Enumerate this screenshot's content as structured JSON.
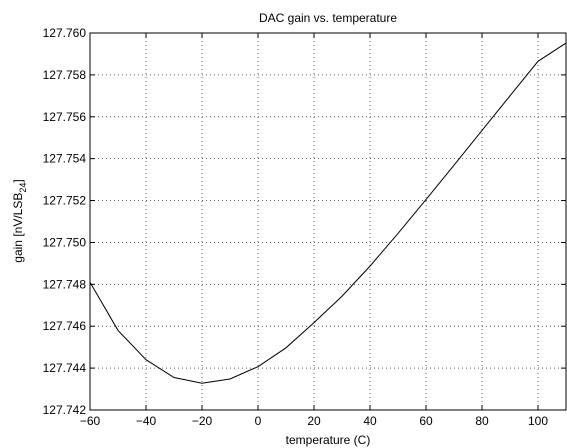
{
  "chart_data": {
    "type": "line",
    "title": "DAC gain vs. temperature",
    "xlabel": "temperature (C)",
    "ylabel": {
      "main": "gain [nV/LSB",
      "sub": "24",
      "end": "]"
    },
    "xlim": [
      -60,
      110
    ],
    "ylim": [
      127.742,
      127.76
    ],
    "xticks": [
      "−60",
      "−40",
      "−20",
      "0",
      "20",
      "40",
      "60",
      "80",
      "100"
    ],
    "xtick_values": [
      -60,
      -40,
      -20,
      0,
      20,
      40,
      60,
      80,
      100
    ],
    "yticks": [
      "127.742",
      "127.744",
      "127.746",
      "127.748",
      "127.750",
      "127.752",
      "127.754",
      "127.756",
      "127.758",
      "127.760"
    ],
    "ytick_values": [
      127.742,
      127.744,
      127.746,
      127.748,
      127.75,
      127.752,
      127.754,
      127.756,
      127.758,
      127.76
    ],
    "grid": true,
    "series": [
      {
        "x": [
          -60,
          -50,
          -40,
          -30,
          -20,
          -10,
          0,
          10,
          20,
          30,
          40,
          50,
          60,
          70,
          80,
          90,
          100,
          110
        ],
        "y": [
          127.7481,
          127.7458,
          127.7444,
          127.74355,
          127.74328,
          127.74348,
          127.74407,
          127.74497,
          127.74617,
          127.74743,
          127.74887,
          127.75043,
          127.75205,
          127.75369,
          127.75535,
          127.757,
          127.75865,
          127.75952
        ],
        "color": "#000000"
      }
    ]
  }
}
